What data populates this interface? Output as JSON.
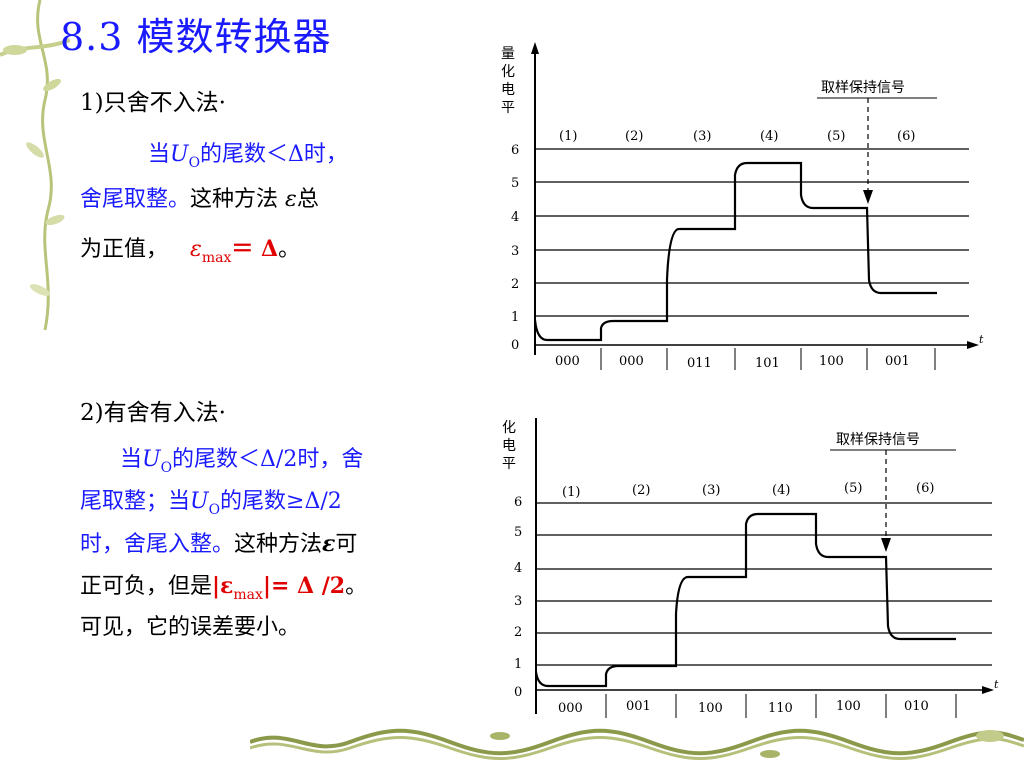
{
  "slide": {
    "title": "8.3  模数转换器"
  },
  "method1": {
    "heading": "1)只舍不入法·",
    "line1_pre": "当",
    "line1_var": "U",
    "line1_sub": "O",
    "line1_post": "的尾数＜Δ时，",
    "line2_blue": "舍尾取整。",
    "line2_black": "这种方法 ",
    "line2_eps": "ε",
    "line2_end": "总",
    "line3_black": "为正值，",
    "line3_eps": "ε",
    "line3_sub": "max",
    "line3_eq": "＝ Δ",
    "line3_end": "。"
  },
  "method2": {
    "heading": "2)有舍有入法·",
    "l1_pre": "当",
    "l1_var": "U",
    "l1_sub": "O",
    "l1_post": "的尾数＜Δ/2时，舍",
    "l2_pre": "尾取整；当",
    "l2_var": "U",
    "l2_sub": "O",
    "l2_post": "的尾数≥Δ/2",
    "l3_blue": "时，舍尾入整。",
    "l3_black": "这种方法",
    "l3_eps": "ε",
    "l3_end": "可",
    "l4_black": "正可负，但是",
    "l4_red": "|ε",
    "l4_sub": "max",
    "l4_red2": "|= Δ /2",
    "l4_end": "。",
    "l5": "可见，它的误差要小。"
  },
  "figure1": {
    "ylabel_chars": [
      "量",
      "化",
      "电",
      "平"
    ],
    "levels": [
      "0",
      "1",
      "2",
      "3",
      "4",
      "5",
      "6"
    ],
    "intervals": [
      "(1)",
      "(2)",
      "(3)",
      "(4)",
      "(5)",
      "(6)"
    ],
    "codes": [
      "000",
      "000",
      "011",
      "101",
      "100",
      "001"
    ],
    "sample_label": "取样保持信号",
    "t_label": "t"
  },
  "figure2": {
    "ylabel_chars": [
      "化",
      "电",
      "平"
    ],
    "levels": [
      "0",
      "1",
      "2",
      "3",
      "4",
      "5",
      "6"
    ],
    "intervals": [
      "(1)",
      "(2)",
      "(3)",
      "(4)",
      "(5)",
      "(6)"
    ],
    "codes": [
      "000",
      "001",
      "100",
      "110",
      "100",
      "010"
    ],
    "sample_label": "取样保持信号",
    "t_label": "t"
  },
  "colors": {
    "title_blue": "#1a1aff",
    "highlight_red": "#e00000",
    "decoration_green": "#8a9a4a"
  }
}
